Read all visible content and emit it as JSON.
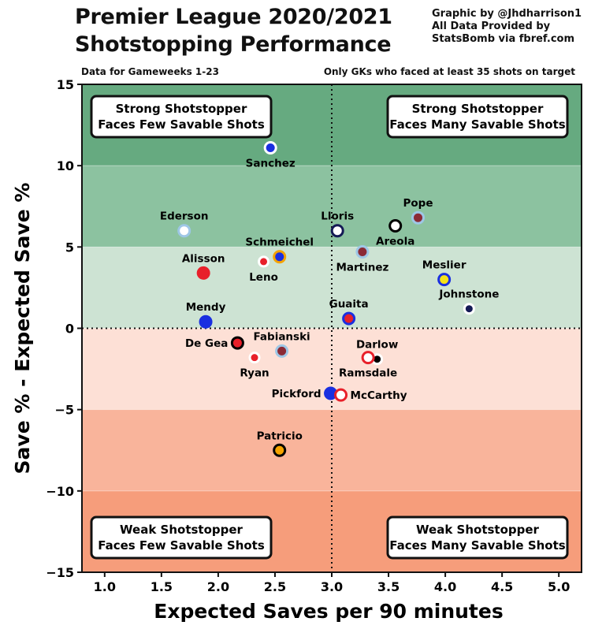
{
  "header": {
    "title_line1": "Premier League 2020/2021",
    "title_line2": "Shotstopping Performance",
    "credit_line1": "Graphic by @Jhdharrison1",
    "credit_line2": "All Data Provided by",
    "credit_line3": "StatsBomb via fbref.com",
    "note_left": "Data for Gameweeks 1-23",
    "note_right": "Only GKs who faced at least 35 shots on target"
  },
  "chart_data": {
    "type": "scatter",
    "xlabel": "Expected Saves per 90 minutes",
    "ylabel": "Save % - Expected Save %",
    "xlim": [
      0.8,
      5.2
    ],
    "ylim": [
      -15,
      15
    ],
    "xticks": [
      1.0,
      1.5,
      2.0,
      2.5,
      3.0,
      3.5,
      4.0,
      4.5,
      5.0
    ],
    "xtick_labels": [
      "1.0",
      "1.5",
      "2.0",
      "2.5",
      "3.0",
      "3.5",
      "4.0",
      "4.5",
      "5.0"
    ],
    "yticks": [
      -15,
      -10,
      -5,
      0,
      5,
      10,
      15
    ],
    "ytick_labels": [
      "−15",
      "−10",
      "−5",
      "0",
      "5",
      "10",
      "15"
    ],
    "reference_lines": {
      "x": 3.0,
      "y": 0
    },
    "bands": [
      {
        "from": 10,
        "to": 15,
        "color": "#66aa80"
      },
      {
        "from": 5,
        "to": 10,
        "color": "#8cc2a0"
      },
      {
        "from": 0,
        "to": 5,
        "color": "#cde3d3"
      },
      {
        "from": -5,
        "to": 0,
        "color": "#fde0d6"
      },
      {
        "from": -10,
        "to": -5,
        "color": "#f9b49b"
      },
      {
        "from": -15,
        "to": -10,
        "color": "#f69d7b"
      }
    ],
    "quadrants": [
      {
        "position": "top-left",
        "line1": "Strong Shotstopper",
        "line2": "Faces Few Savable Shots"
      },
      {
        "position": "top-right",
        "line1": "Strong Shotstopper",
        "line2": "Faces Many Savable Shots"
      },
      {
        "position": "bottom-left",
        "line1": "Weak Shotstopper",
        "line2": "Faces Few Savable Shots"
      },
      {
        "position": "bottom-right",
        "line1": "Weak Shotstopper",
        "line2": "Faces Many Savable Shots"
      }
    ],
    "points": [
      {
        "name": "Sanchez",
        "x": 2.46,
        "y": 11.1,
        "fill": "#1a2fe0",
        "ring": "#ffffff",
        "r": 7,
        "label_pos": "below"
      },
      {
        "name": "Ederson",
        "x": 1.7,
        "y": 6.0,
        "fill": "#ffffff",
        "ring": "#9ec7e6",
        "r": 7,
        "label_pos": "above"
      },
      {
        "name": "Lloris",
        "x": 3.05,
        "y": 6.0,
        "fill": "#ffffff",
        "ring": "#141a55",
        "r": 7,
        "label_pos": "above"
      },
      {
        "name": "Areola",
        "x": 3.56,
        "y": 6.3,
        "fill": "#ffffff",
        "ring": "#000000",
        "r": 7,
        "label_pos": "below"
      },
      {
        "name": "Pope",
        "x": 3.76,
        "y": 6.8,
        "fill": "#8b2a35",
        "ring": "#9ec7e6",
        "r": 7,
        "label_pos": "above"
      },
      {
        "name": "Schmeichel",
        "x": 2.54,
        "y": 4.4,
        "fill": "#1a2fe0",
        "ring": "#f4a300",
        "r": 7,
        "label_pos": "above"
      },
      {
        "name": "Leno",
        "x": 2.4,
        "y": 4.1,
        "fill": "#e8202a",
        "ring": "#ffffff",
        "r": 6,
        "label_pos": "below"
      },
      {
        "name": "Martinez",
        "x": 3.27,
        "y": 4.7,
        "fill": "#8b2a35",
        "ring": "#9ec7e6",
        "r": 7,
        "label_pos": "below"
      },
      {
        "name": "Alisson",
        "x": 1.87,
        "y": 3.4,
        "fill": "#e8202a",
        "ring": "#e8202a",
        "r": 7,
        "label_pos": "above"
      },
      {
        "name": "Meslier",
        "x": 3.99,
        "y": 3.0,
        "fill": "#f5e21a",
        "ring": "#1a2fe0",
        "r": 7,
        "label_pos": "above"
      },
      {
        "name": "Johnstone",
        "x": 4.21,
        "y": 1.2,
        "fill": "#141a55",
        "ring": "#ffffff",
        "r": 6,
        "label_pos": "above"
      },
      {
        "name": "Mendy",
        "x": 1.89,
        "y": 0.4,
        "fill": "#1a2fe0",
        "ring": "#1a2fe0",
        "r": 7,
        "label_pos": "above"
      },
      {
        "name": "Guaita",
        "x": 3.15,
        "y": 0.6,
        "fill": "#e8202a",
        "ring": "#1a2fe0",
        "r": 7,
        "label_pos": "above"
      },
      {
        "name": "De Gea",
        "x": 2.17,
        "y": -0.9,
        "fill": "#e8202a",
        "ring": "#000000",
        "r": 7,
        "label_pos": "left"
      },
      {
        "name": "Fabianski",
        "x": 2.56,
        "y": -1.4,
        "fill": "#8b2a35",
        "ring": "#9ec7e6",
        "r": 7,
        "label_pos": "above"
      },
      {
        "name": "Ryan",
        "x": 2.32,
        "y": -1.8,
        "fill": "#e8202a",
        "ring": "#ffffff",
        "r": 6,
        "label_pos": "below"
      },
      {
        "name": "Darlow",
        "x": 3.4,
        "y": -1.9,
        "fill": "#000000",
        "ring": "#ffffff",
        "r": 6,
        "label_pos": "above"
      },
      {
        "name": "Ramsdale",
        "x": 3.32,
        "y": -1.8,
        "fill": "#ffffff",
        "ring": "#e8202a",
        "r": 7,
        "label_pos": "below"
      },
      {
        "name": "Pickford",
        "x": 2.99,
        "y": -4.0,
        "fill": "#1a2fe0",
        "ring": "#1a2fe0",
        "r": 7,
        "label_pos": "left"
      },
      {
        "name": "McCarthy",
        "x": 3.08,
        "y": -4.1,
        "fill": "#ffffff",
        "ring": "#e8202a",
        "r": 7,
        "label_pos": "right"
      },
      {
        "name": "Patricio",
        "x": 2.54,
        "y": -7.5,
        "fill": "#f4a300",
        "ring": "#000000",
        "r": 7,
        "label_pos": "above"
      }
    ]
  }
}
